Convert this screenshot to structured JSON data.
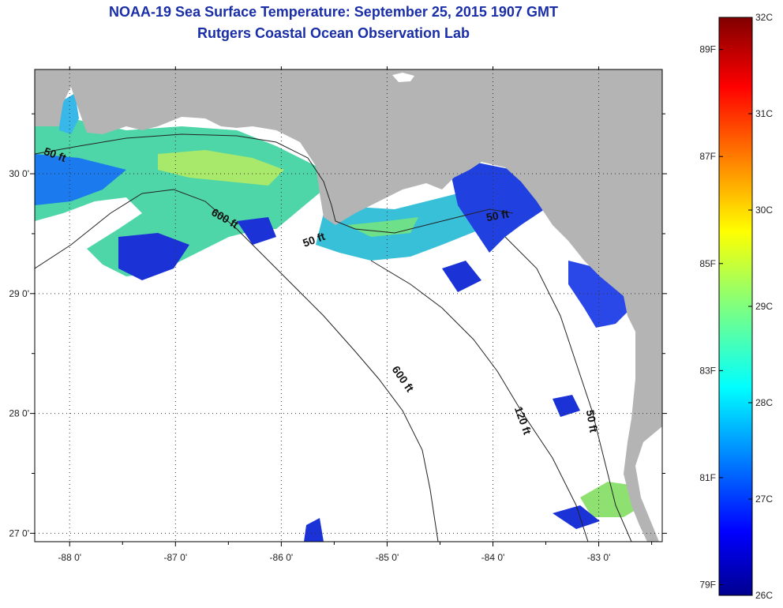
{
  "title": "NOAA-19 Sea Surface Temperature:  September 25, 2015 1907 GMT",
  "subtitle": "Rutgers Coastal Ocean Observation Lab",
  "map": {
    "lon_range": [
      -88.33,
      -82.4
    ],
    "lat_range": [
      26.93,
      30.87
    ],
    "lon_ticks": [
      {
        "value": -88,
        "label": "-88 0'"
      },
      {
        "value": -87,
        "label": "-87 0'"
      },
      {
        "value": -86,
        "label": "-86 0'"
      },
      {
        "value": -85,
        "label": "-85 0'"
      },
      {
        "value": -84,
        "label": "-84 0'"
      },
      {
        "value": -83,
        "label": "-83 0'"
      }
    ],
    "lat_ticks": [
      {
        "value": 30,
        "label": "30 0'"
      },
      {
        "value": 29,
        "label": "29 0'"
      },
      {
        "value": 28,
        "label": "28 0'"
      },
      {
        "value": 27,
        "label": "27 0'"
      }
    ],
    "contour_labels": [
      {
        "text": "50 ft",
        "lon": -88.15,
        "lat": 30.13,
        "rotate": 20
      },
      {
        "text": "600 ft",
        "lon": -86.55,
        "lat": 29.6,
        "rotate": 30
      },
      {
        "text": "50 ft",
        "lon": -85.68,
        "lat": 29.42,
        "rotate": -20
      },
      {
        "text": "50 ft",
        "lon": -83.95,
        "lat": 29.62,
        "rotate": -10
      },
      {
        "text": "600 ft",
        "lon": -84.88,
        "lat": 28.27,
        "rotate": 55
      },
      {
        "text": "120 ft",
        "lon": -83.75,
        "lat": 27.93,
        "rotate": 70
      },
      {
        "text": "50 ft",
        "lon": -83.1,
        "lat": 27.93,
        "rotate": 80
      }
    ],
    "land_color": "#b4b4b4",
    "no_data_color": "#ffffff"
  },
  "colorbar": {
    "min_c": 26,
    "max_c": 32,
    "celsius_ticks": [
      {
        "value": 32,
        "label": "32C"
      },
      {
        "value": 31,
        "label": "31C"
      },
      {
        "value": 30,
        "label": "30C"
      },
      {
        "value": 29,
        "label": "29C"
      },
      {
        "value": 28,
        "label": "28C"
      },
      {
        "value": 27,
        "label": "27C"
      },
      {
        "value": 26,
        "label": "26C"
      }
    ],
    "fahrenheit_ticks": [
      {
        "value": 89,
        "label": "89F"
      },
      {
        "value": 87,
        "label": "87F"
      },
      {
        "value": 85,
        "label": "85F"
      },
      {
        "value": 83,
        "label": "83F"
      },
      {
        "value": 81,
        "label": "81F"
      },
      {
        "value": 79,
        "label": "79F"
      }
    ]
  }
}
